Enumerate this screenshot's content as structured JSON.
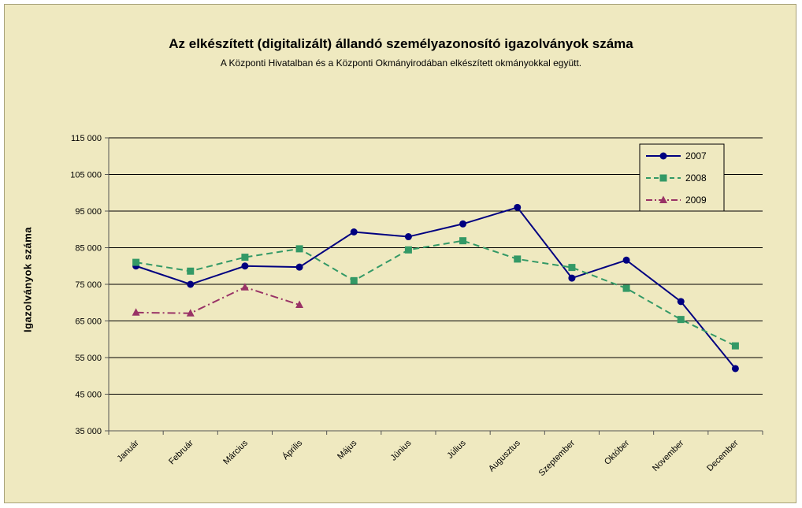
{
  "chart_data": {
    "type": "line",
    "title": "Az elkészített (digitalizált) állandó személyazonosító igazolványok száma",
    "subtitle": "A Központi Hivatalban és a Központi Okmányirodában elkészített okmányokkal együtt.",
    "xlabel": "",
    "ylabel": "Igazolványok száma",
    "ylim": [
      35000,
      115000
    ],
    "yticks": [
      35000,
      45000,
      55000,
      65000,
      75000,
      85000,
      95000,
      105000,
      115000
    ],
    "ytick_labels": [
      "35 000",
      "45 000",
      "55 000",
      "65 000",
      "75 000",
      "85 000",
      "95 000",
      "105 000",
      "115 000"
    ],
    "grid": true,
    "legend_position": "top-right",
    "categories": [
      "Január",
      "Február",
      "Március",
      "Április",
      "Május",
      "Június",
      "Július",
      "Augusztus",
      "Szeptember",
      "Október",
      "November",
      "December"
    ],
    "series": [
      {
        "name": "2007",
        "color": "#000080",
        "marker": "circle",
        "dash": "solid",
        "values": [
          80000,
          75000,
          80000,
          79700,
          89300,
          88000,
          91500,
          96000,
          76700,
          81600,
          70300,
          52000
        ]
      },
      {
        "name": "2008",
        "color": "#339966",
        "marker": "square",
        "dash": "dashed",
        "values": [
          81000,
          78600,
          82400,
          84700,
          76000,
          84400,
          86900,
          81900,
          79600,
          73900,
          65400,
          58200
        ]
      },
      {
        "name": "2009",
        "color": "#993366",
        "marker": "triangle",
        "dash": "dashdot",
        "values": [
          67300,
          67100,
          74200,
          69400,
          null,
          null,
          null,
          null,
          null,
          null,
          null,
          null
        ]
      }
    ]
  }
}
